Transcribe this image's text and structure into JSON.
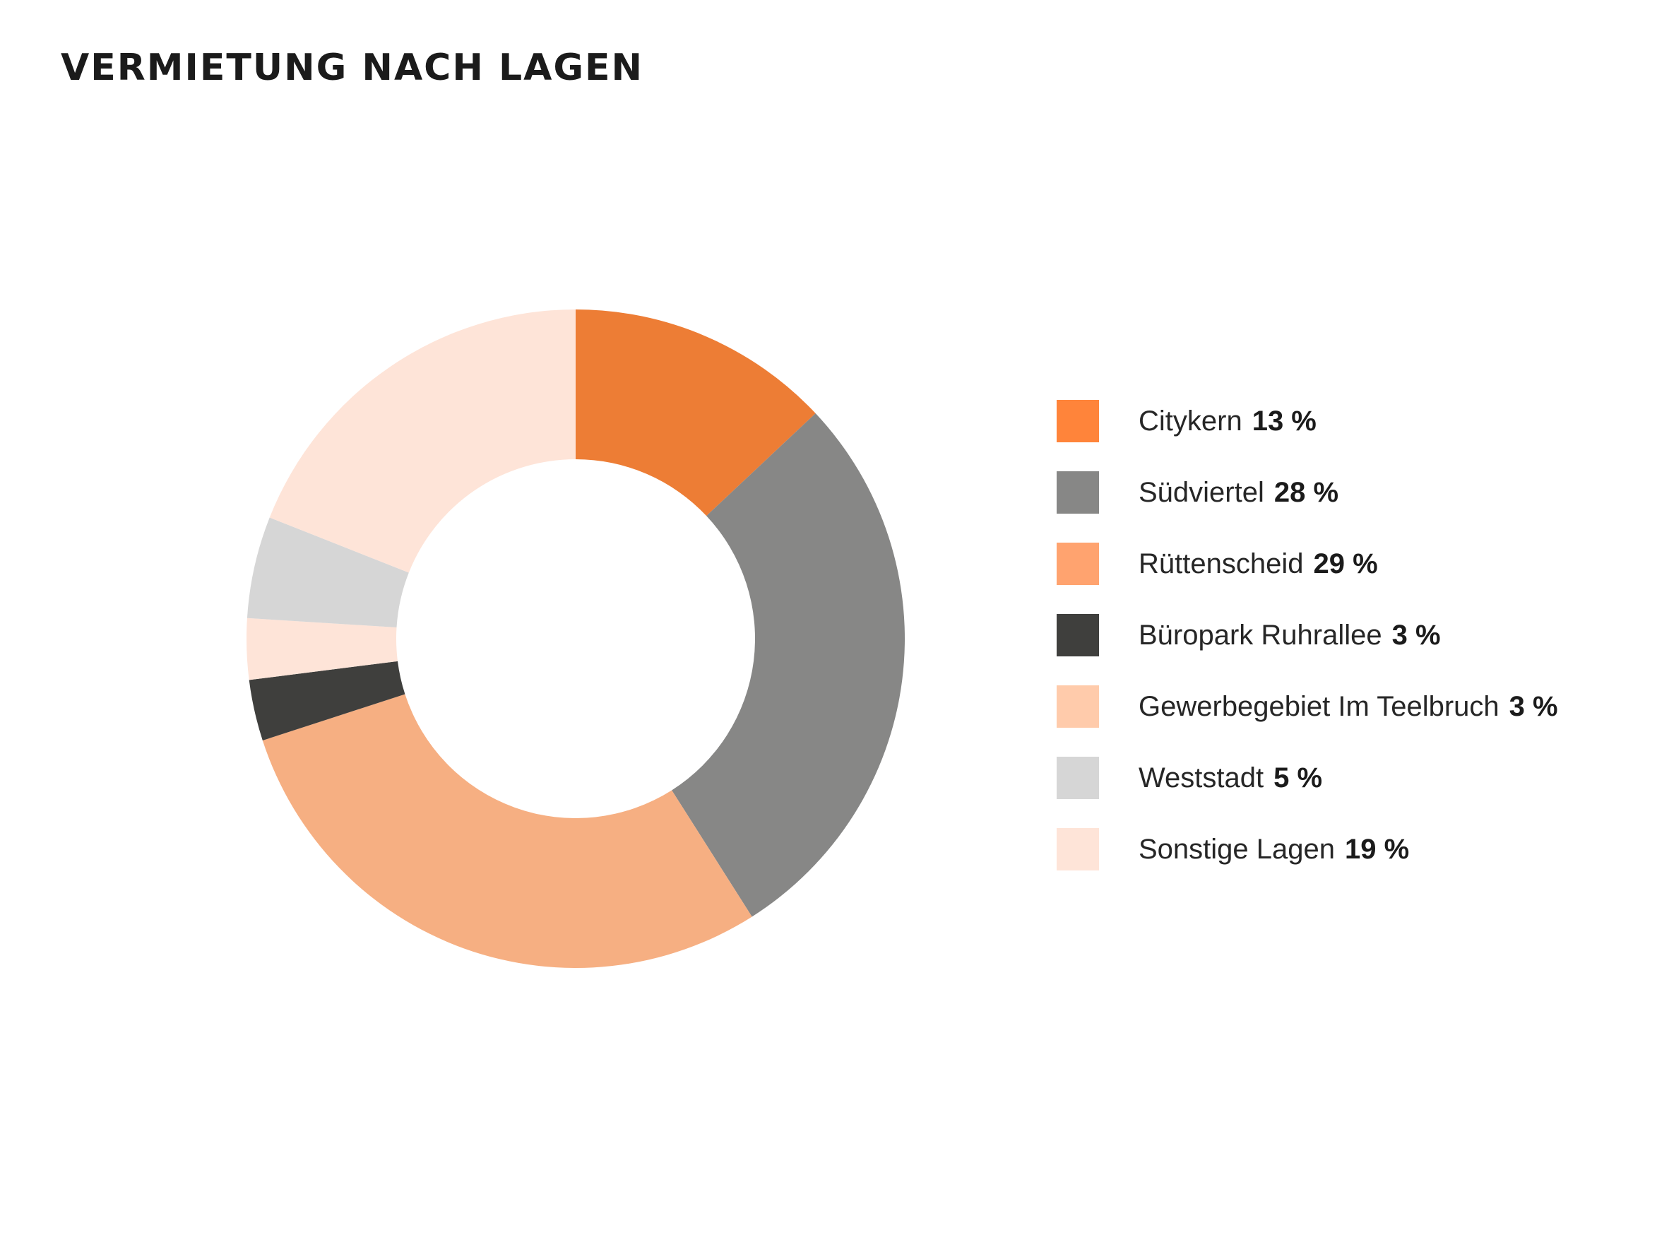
{
  "chart_data": {
    "type": "pie",
    "title": "VERMIETUNG NACH LAGEN",
    "donut": true,
    "start_angle_deg": 0,
    "direction": "clockwise",
    "legend_position": "right",
    "segments": [
      {
        "label": "Citykern",
        "value": 13,
        "value_label": "13 %",
        "color": "#ED7D35",
        "swatch_color": "#FF843A"
      },
      {
        "label": "Südviertel",
        "value": 28,
        "value_label": "28 %",
        "color": "#878786",
        "swatch_color": "#878786"
      },
      {
        "label": "Rüttenscheid",
        "value": 29,
        "value_label": "29 %",
        "color": "#F6AF82",
        "swatch_color": "#FFA36F"
      },
      {
        "label": "Büropark Ruhrallee",
        "value": 3,
        "value_label": "3 %",
        "color": "#3F3F3D",
        "swatch_color": "#3F3F3D"
      },
      {
        "label": "Gewerbegebiet Im Teelbruch",
        "value": 3,
        "value_label": "3 %",
        "color": "#FEE4D8",
        "swatch_color": "#FFCBAB"
      },
      {
        "label": "Weststadt",
        "value": 5,
        "value_label": "5 %",
        "color": "#D6D6D6",
        "swatch_color": "#D6D6D6"
      },
      {
        "label": "Sonstige Lagen",
        "value": 19,
        "value_label": "19 %",
        "color": "#FEE4D8",
        "swatch_color": "#FEE4D8"
      }
    ]
  }
}
